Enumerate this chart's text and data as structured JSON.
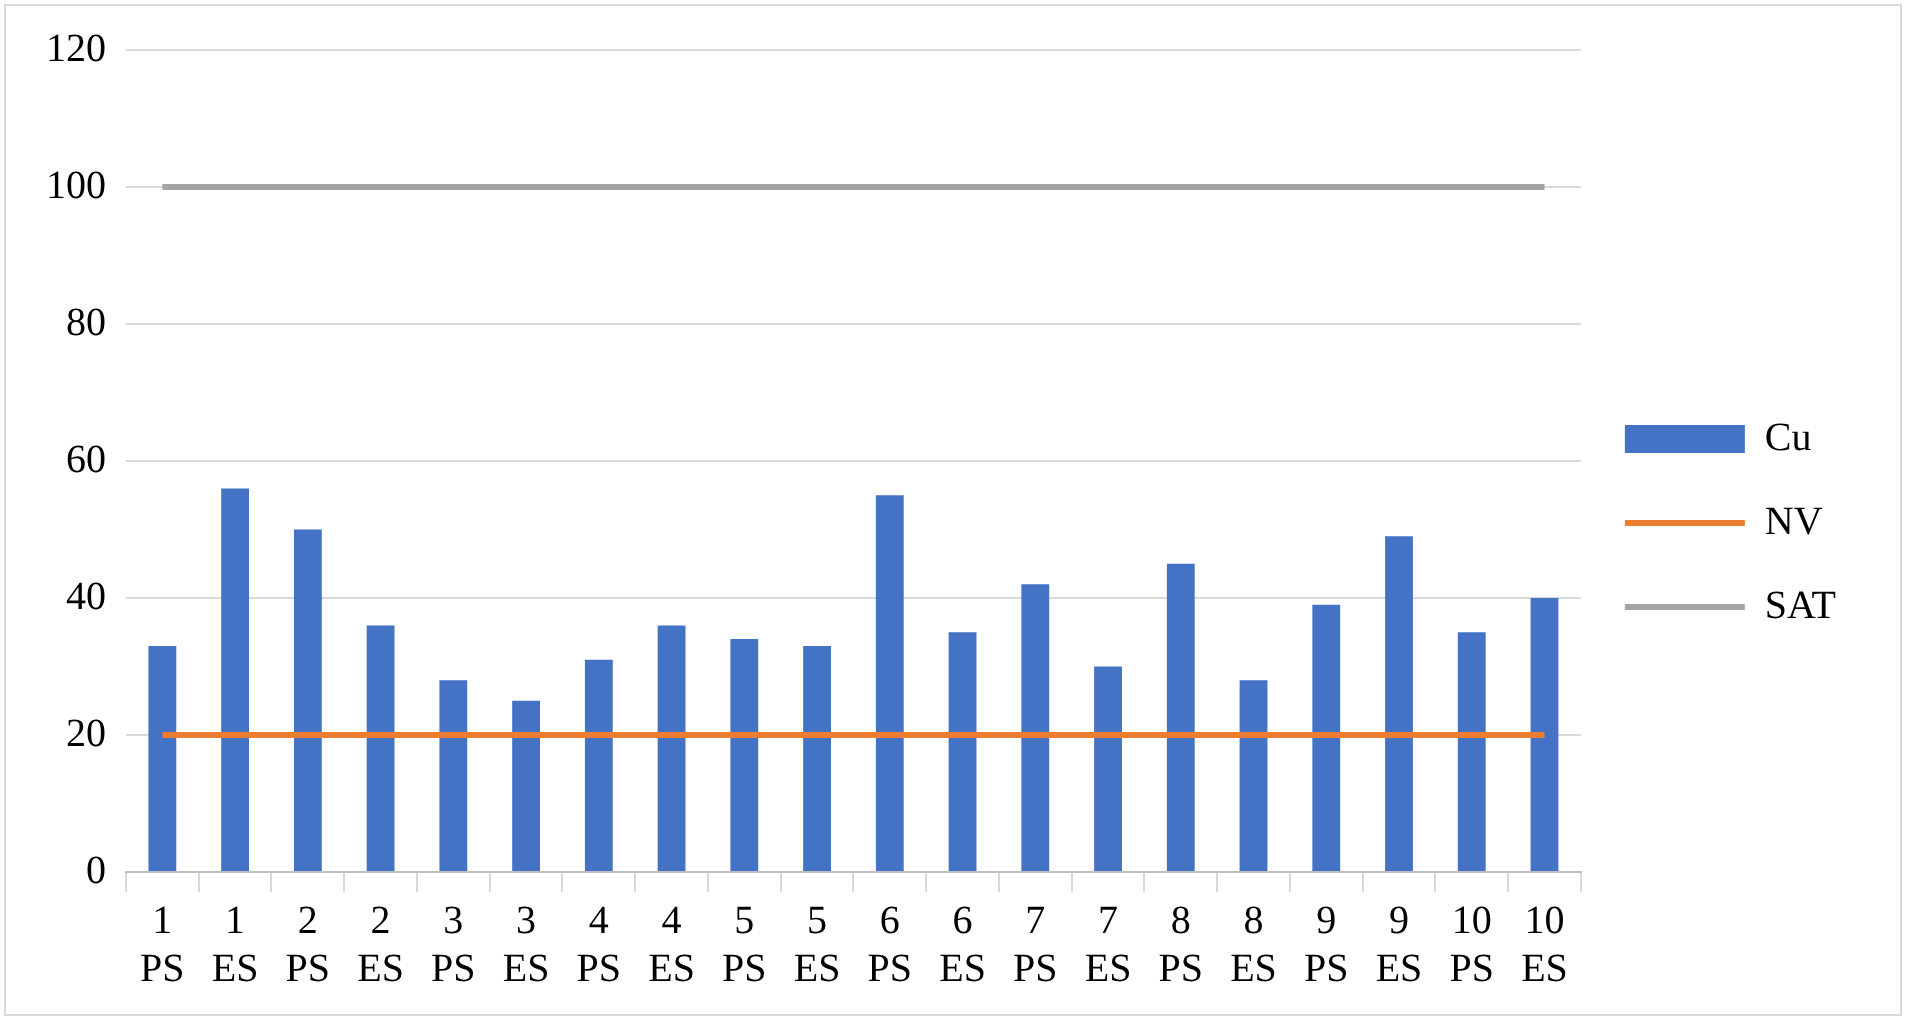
{
  "chart_data": {
    "type": "bar",
    "categories": [
      "1 PS",
      "1 ES",
      "2 PS",
      "2 ES",
      "3 PS",
      "3 ES",
      "4 PS",
      "4 ES",
      "5 PS",
      "5 ES",
      "6 PS",
      "6 ES",
      "7 PS",
      "7 ES",
      "8 PS",
      "8 ES",
      "9 PS",
      "9 ES",
      "10 PS",
      "10 ES"
    ],
    "series": [
      {
        "name": "Cu",
        "color": "#4472c4",
        "values": [
          33,
          56,
          50,
          36,
          28,
          25,
          31,
          36,
          34,
          33,
          55,
          35,
          42,
          30,
          45,
          28,
          39,
          49,
          35,
          40
        ]
      },
      {
        "name": "NV",
        "type": "line",
        "color": "#ed7d31",
        "values": [
          20,
          20,
          20,
          20,
          20,
          20,
          20,
          20,
          20,
          20,
          20,
          20,
          20,
          20,
          20,
          20,
          20,
          20,
          20,
          20
        ]
      },
      {
        "name": "SAT",
        "type": "line",
        "color": "#a5a5a5",
        "values": [
          100,
          100,
          100,
          100,
          100,
          100,
          100,
          100,
          100,
          100,
          100,
          100,
          100,
          100,
          100,
          100,
          100,
          100,
          100,
          100
        ]
      }
    ],
    "ylim": [
      0,
      120
    ],
    "yticks": [
      0,
      20,
      40,
      60,
      80,
      100,
      120
    ],
    "grid": "y",
    "legend": "right",
    "marker": "none"
  }
}
